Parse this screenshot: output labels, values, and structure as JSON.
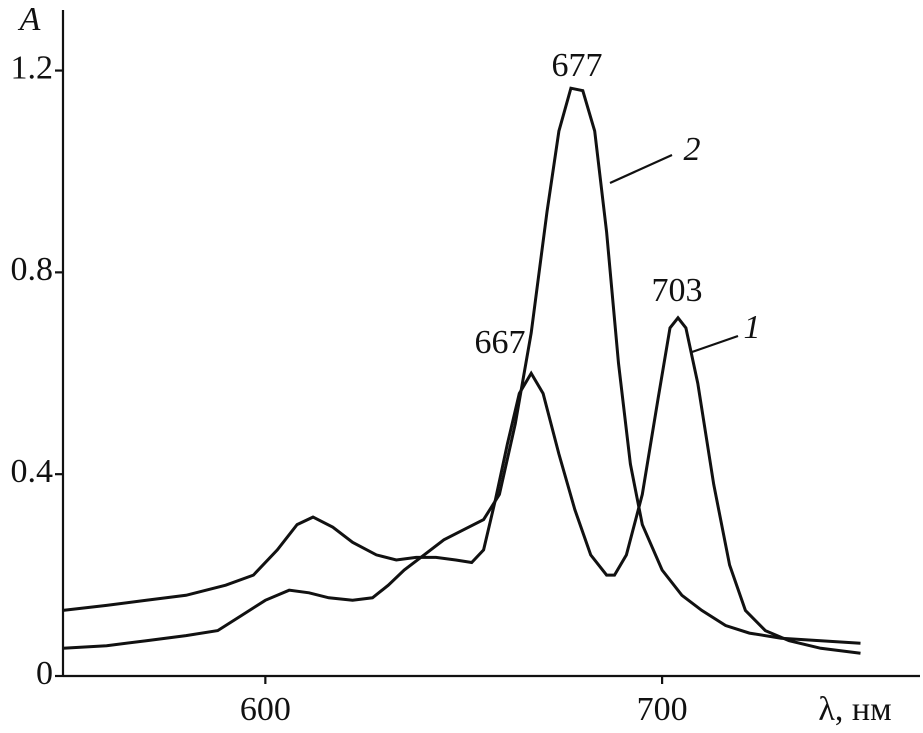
{
  "chart_data": {
    "type": "line",
    "y_label": "A",
    "x_label": "λ, нм",
    "xlim": [
      549,
      765
    ],
    "ylim": [
      0,
      1.32
    ],
    "xticks": [
      600,
      700
    ],
    "yticks": [
      0,
      0.4,
      0.8,
      1.2
    ],
    "color": "#111111",
    "series": [
      {
        "name": "1",
        "color": "#111111",
        "x": [
          549,
          560,
          570,
          580,
          590,
          597,
          603,
          608,
          612,
          617,
          622,
          628,
          633,
          638,
          643,
          648,
          652,
          655,
          658,
          661,
          664,
          667,
          670,
          674,
          678,
          682,
          686,
          688,
          691,
          695,
          699,
          702,
          704,
          706,
          709,
          713,
          717,
          721,
          726,
          732,
          740,
          750
        ],
        "values": [
          0.13,
          0.14,
          0.15,
          0.16,
          0.18,
          0.2,
          0.25,
          0.3,
          0.315,
          0.295,
          0.265,
          0.24,
          0.23,
          0.235,
          0.235,
          0.23,
          0.225,
          0.25,
          0.35,
          0.46,
          0.56,
          0.6,
          0.56,
          0.44,
          0.33,
          0.24,
          0.2,
          0.2,
          0.24,
          0.36,
          0.55,
          0.69,
          0.71,
          0.69,
          0.58,
          0.38,
          0.22,
          0.13,
          0.09,
          0.07,
          0.055,
          0.045
        ]
      },
      {
        "name": "2",
        "color": "#111111",
        "x": [
          549,
          560,
          570,
          580,
          588,
          594,
          600,
          606,
          611,
          616,
          622,
          627,
          631,
          635,
          640,
          645,
          650,
          655,
          659,
          663,
          667,
          671,
          674,
          677,
          680,
          683,
          686,
          689,
          692,
          695,
          700,
          705,
          710,
          716,
          722,
          730,
          740,
          750
        ],
        "values": [
          0.055,
          0.06,
          0.07,
          0.08,
          0.09,
          0.12,
          0.15,
          0.17,
          0.165,
          0.155,
          0.15,
          0.155,
          0.18,
          0.21,
          0.24,
          0.27,
          0.29,
          0.31,
          0.36,
          0.5,
          0.68,
          0.92,
          1.08,
          1.165,
          1.16,
          1.08,
          0.88,
          0.62,
          0.42,
          0.3,
          0.21,
          0.16,
          0.13,
          0.1,
          0.085,
          0.075,
          0.07,
          0.065
        ]
      }
    ],
    "annotations": [
      "677",
      "667",
      "703"
    ]
  }
}
